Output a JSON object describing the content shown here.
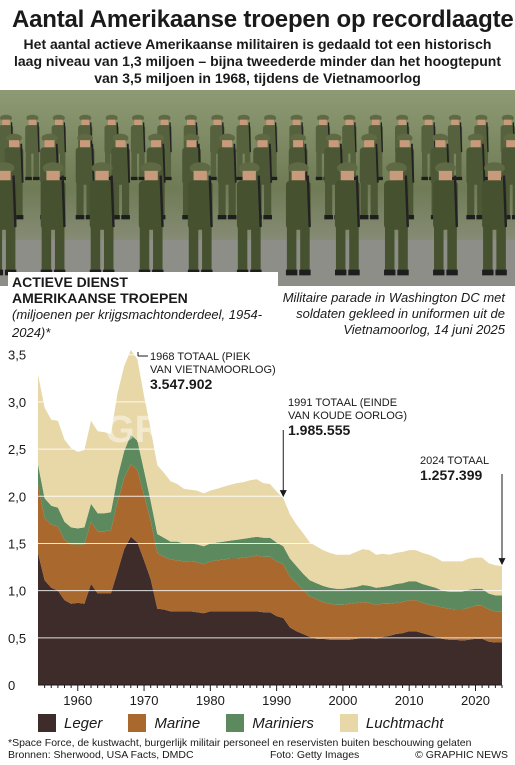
{
  "header": {
    "title": "Aantal Amerikaanse troepen op recordlaagte",
    "subtitle": "Het aantal actieve Amerikaanse militairen is gedaald tot een historisch laag niveau van 1,3 miljoen – bijna tweederde minder dan het hoogtepunt van 3,5 miljoen in 1968, tijdens de Vietnamoorlog"
  },
  "photo": {
    "caption": "Militaire parade in Washington DC met soldaten gekleed in uniformen uit de Vietnamoorlog, 14 juni 2025"
  },
  "chart_label": {
    "line1": "ACTIEVE DIENST",
    "line2": "AMERIKAANSE TROEPEN",
    "unit": "(miljoenen per krijgsmachtonderdeel, 1954-2024)*"
  },
  "watermark": "GRAPHIC NEWS",
  "colors": {
    "leger": "#3d2c29",
    "marine": "#a8682e",
    "mariniers": "#5c8a5e",
    "luchtmacht": "#e8d8a8",
    "grid": "#ffffff"
  },
  "chart_data": {
    "type": "area",
    "stacked": true,
    "x": [
      1954,
      1955,
      1956,
      1957,
      1958,
      1959,
      1960,
      1961,
      1962,
      1963,
      1964,
      1965,
      1966,
      1967,
      1968,
      1969,
      1970,
      1971,
      1972,
      1973,
      1974,
      1975,
      1976,
      1977,
      1978,
      1979,
      1980,
      1981,
      1982,
      1983,
      1984,
      1985,
      1986,
      1987,
      1988,
      1989,
      1990,
      1991,
      1992,
      1993,
      1994,
      1995,
      1996,
      1997,
      1998,
      1999,
      2000,
      2001,
      2002,
      2003,
      2004,
      2005,
      2006,
      2007,
      2008,
      2009,
      2010,
      2011,
      2012,
      2013,
      2014,
      2015,
      2016,
      2017,
      2018,
      2019,
      2020,
      2021,
      2022,
      2023,
      2024
    ],
    "series": [
      {
        "name": "Leger",
        "color": "#3d2c29",
        "values": [
          1.4,
          1.11,
          1.03,
          1.0,
          0.9,
          0.86,
          0.87,
          0.86,
          1.07,
          0.97,
          0.97,
          0.97,
          1.2,
          1.44,
          1.57,
          1.51,
          1.32,
          1.12,
          0.81,
          0.8,
          0.78,
          0.78,
          0.78,
          0.78,
          0.77,
          0.76,
          0.78,
          0.78,
          0.78,
          0.78,
          0.78,
          0.78,
          0.78,
          0.78,
          0.77,
          0.77,
          0.73,
          0.71,
          0.61,
          0.57,
          0.54,
          0.51,
          0.49,
          0.49,
          0.48,
          0.48,
          0.48,
          0.48,
          0.49,
          0.5,
          0.5,
          0.49,
          0.51,
          0.52,
          0.54,
          0.55,
          0.57,
          0.57,
          0.55,
          0.53,
          0.51,
          0.49,
          0.48,
          0.48,
          0.47,
          0.48,
          0.49,
          0.49,
          0.46,
          0.45,
          0.45
        ]
      },
      {
        "name": "Marine",
        "color": "#a8682e",
        "values": [
          0.72,
          0.66,
          0.67,
          0.68,
          0.64,
          0.63,
          0.62,
          0.63,
          0.66,
          0.66,
          0.66,
          0.67,
          0.74,
          0.75,
          0.77,
          0.77,
          0.69,
          0.62,
          0.59,
          0.56,
          0.55,
          0.54,
          0.53,
          0.53,
          0.53,
          0.52,
          0.53,
          0.54,
          0.55,
          0.56,
          0.56,
          0.57,
          0.58,
          0.59,
          0.59,
          0.59,
          0.58,
          0.57,
          0.54,
          0.51,
          0.47,
          0.43,
          0.42,
          0.39,
          0.38,
          0.37,
          0.37,
          0.38,
          0.38,
          0.38,
          0.37,
          0.36,
          0.35,
          0.34,
          0.33,
          0.33,
          0.33,
          0.33,
          0.32,
          0.32,
          0.33,
          0.33,
          0.33,
          0.32,
          0.33,
          0.34,
          0.35,
          0.35,
          0.34,
          0.33,
          0.33
        ]
      },
      {
        "name": "Mariniers",
        "color": "#5c8a5e",
        "values": [
          0.22,
          0.21,
          0.2,
          0.2,
          0.19,
          0.18,
          0.17,
          0.18,
          0.19,
          0.19,
          0.19,
          0.19,
          0.26,
          0.29,
          0.31,
          0.31,
          0.26,
          0.21,
          0.2,
          0.2,
          0.19,
          0.2,
          0.19,
          0.19,
          0.19,
          0.19,
          0.19,
          0.19,
          0.19,
          0.19,
          0.2,
          0.2,
          0.2,
          0.2,
          0.2,
          0.2,
          0.2,
          0.19,
          0.19,
          0.18,
          0.17,
          0.17,
          0.17,
          0.17,
          0.17,
          0.17,
          0.17,
          0.17,
          0.17,
          0.18,
          0.18,
          0.18,
          0.18,
          0.19,
          0.2,
          0.2,
          0.2,
          0.2,
          0.2,
          0.2,
          0.19,
          0.18,
          0.18,
          0.19,
          0.19,
          0.19,
          0.18,
          0.18,
          0.17,
          0.17,
          0.17
        ]
      },
      {
        "name": "Luchtmacht",
        "color": "#e8d8a8",
        "values": [
          0.95,
          0.96,
          0.91,
          0.92,
          0.87,
          0.84,
          0.81,
          0.82,
          0.88,
          0.87,
          0.86,
          0.83,
          0.89,
          0.9,
          0.9,
          0.86,
          0.79,
          0.76,
          0.73,
          0.69,
          0.64,
          0.61,
          0.58,
          0.57,
          0.57,
          0.56,
          0.56,
          0.57,
          0.58,
          0.59,
          0.6,
          0.6,
          0.61,
          0.61,
          0.58,
          0.57,
          0.54,
          0.51,
          0.47,
          0.44,
          0.43,
          0.4,
          0.39,
          0.38,
          0.37,
          0.36,
          0.36,
          0.35,
          0.37,
          0.38,
          0.38,
          0.35,
          0.35,
          0.33,
          0.33,
          0.33,
          0.33,
          0.33,
          0.33,
          0.33,
          0.32,
          0.31,
          0.32,
          0.32,
          0.32,
          0.33,
          0.33,
          0.33,
          0.32,
          0.32,
          0.31
        ]
      }
    ],
    "yticks": [
      "0",
      "0,5",
      "1,0",
      "1,5",
      "2,0",
      "2,5",
      "3,0",
      "3,5"
    ],
    "xticks": [
      "1960",
      "1970",
      "1980",
      "1990",
      "2000",
      "2010",
      "2020"
    ],
    "ylim": [
      0,
      3.55
    ],
    "xlim": [
      1954,
      2024
    ],
    "grid": true,
    "annotations": [
      {
        "year": 1968,
        "line1": "1968 TOTAAL (PIEK",
        "line2": "VAN VIETNAMOORLOG)",
        "value": "3.547.902"
      },
      {
        "year": 1991,
        "line1": "1991 TOTAAL (EINDE",
        "line2": "VAN KOUDE OORLOG)",
        "value": "1.985.555"
      },
      {
        "year": 2024,
        "line1": "2024 TOTAAL",
        "line2": "",
        "value": "1.257.399"
      }
    ]
  },
  "legend": [
    {
      "label": "Leger",
      "color": "#3d2c29"
    },
    {
      "label": "Marine",
      "color": "#a8682e"
    },
    {
      "label": "Mariniers",
      "color": "#5c8a5e"
    },
    {
      "label": "Luchtmacht",
      "color": "#e8d8a8"
    }
  ],
  "footer": {
    "note": "*Space Force, de kustwacht, burgerlijk militair personeel en reservisten buiten beschouwing gelaten",
    "sources": "Bronnen: Sherwood, USA Facts, DMDC",
    "photo_credit": "Foto: Getty Images",
    "brand": "© GRAPHIC NEWS"
  }
}
